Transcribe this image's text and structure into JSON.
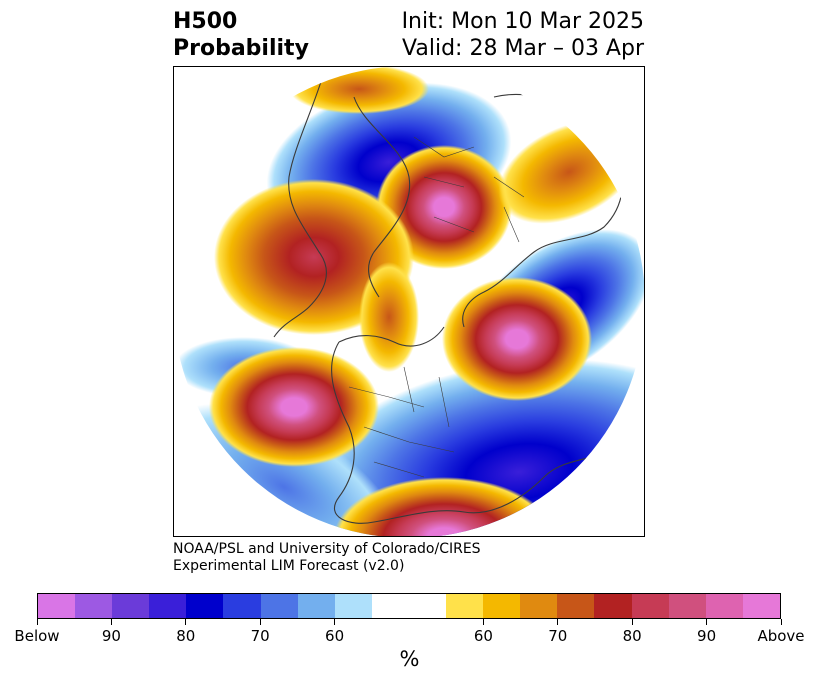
{
  "title": {
    "left_line1": "H500",
    "left_line2": "Probability",
    "right_line1": "Init: Mon 10 Mar 2025",
    "right_line2": "Valid: 28 Mar – 03 Apr"
  },
  "credit": {
    "line1": "NOAA/PSL and University of Colorado/CIRES",
    "line2": "Experimental LIM Forecast (v2.0)"
  },
  "colorbar": {
    "unit_label": "%",
    "colors": [
      "#d975e6",
      "#9d59e3",
      "#6b3bd9",
      "#3a1fd9",
      "#0000cc",
      "#2a3de0",
      "#4d74e6",
      "#73afee",
      "#aee0fb",
      "#ffffff",
      "#ffffff",
      "#ffe14a",
      "#f4b800",
      "#e08a10",
      "#c75618",
      "#b22222",
      "#c63b55",
      "#d0507e",
      "#de63b0",
      "#e678d8"
    ],
    "tick_labels": [
      "Below",
      "90",
      "80",
      "70",
      "60",
      "60",
      "70",
      "80",
      "90",
      "Above"
    ]
  },
  "map": {
    "projection": "north polar stereographic",
    "variable": "500 hPa height probability",
    "anomalies": [
      {
        "sign": "above",
        "level": "Above",
        "region": "Arctic Ocean / Siberia"
      },
      {
        "sign": "above",
        "level": "Above",
        "region": "North Atlantic"
      },
      {
        "sign": "above",
        "level": "Above",
        "region": "Northeast Pacific"
      },
      {
        "sign": "above",
        "level": "80",
        "region": "Southeastern United States"
      },
      {
        "sign": "above",
        "level": "80",
        "region": "Subtropical West Pacific"
      },
      {
        "sign": "above",
        "level": "70",
        "region": "Western Europe"
      },
      {
        "sign": "below",
        "level": "90",
        "region": "Canada / Hudson Bay"
      },
      {
        "sign": "below",
        "level": "80",
        "region": "Scandinavia / Northern Europe"
      },
      {
        "sign": "below",
        "level": "80",
        "region": "East Asia"
      },
      {
        "sign": "below",
        "level": "70",
        "region": "Central Pacific"
      }
    ]
  }
}
